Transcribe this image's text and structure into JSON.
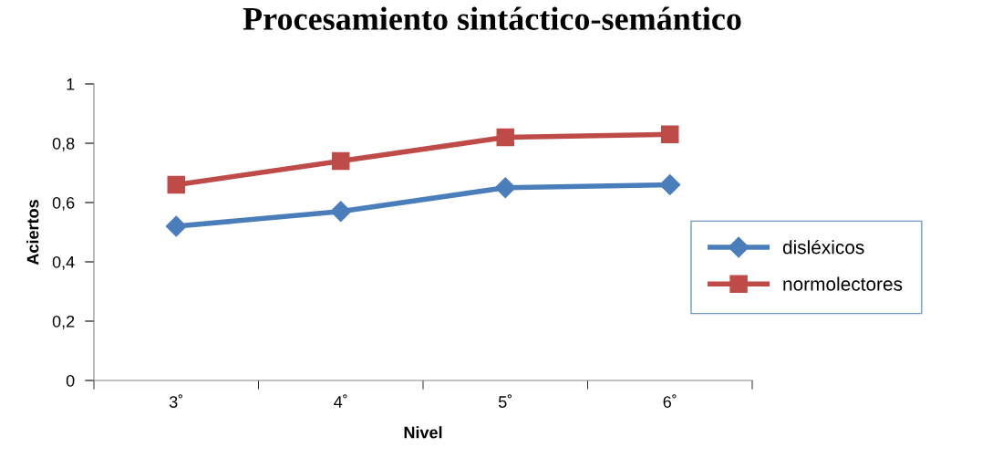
{
  "chart_data": {
    "type": "line",
    "title": "Procesamiento sintáctico-semántico",
    "xlabel": "Nivel",
    "ylabel": "Aciertos",
    "categories": [
      "3˚",
      "4˚",
      "5˚",
      "6˚"
    ],
    "series": [
      {
        "name": "disléxicos",
        "color": "#4a7ebb",
        "marker": "diamond",
        "values": [
          0.52,
          0.57,
          0.65,
          0.66
        ]
      },
      {
        "name": "normolectores",
        "color": "#be4b48",
        "marker": "square",
        "values": [
          0.66,
          0.74,
          0.82,
          0.83
        ]
      }
    ],
    "ylim": [
      0,
      1
    ],
    "yticks": [
      {
        "value": 0,
        "label": "0"
      },
      {
        "value": 0.2,
        "label": "0,2"
      },
      {
        "value": 0.4,
        "label": "0,4"
      },
      {
        "value": 0.6,
        "label": "0,6"
      },
      {
        "value": 0.8,
        "label": "0,8"
      },
      {
        "value": 1,
        "label": "1"
      }
    ],
    "grid": false,
    "legend": "right",
    "line_style": "solid"
  }
}
